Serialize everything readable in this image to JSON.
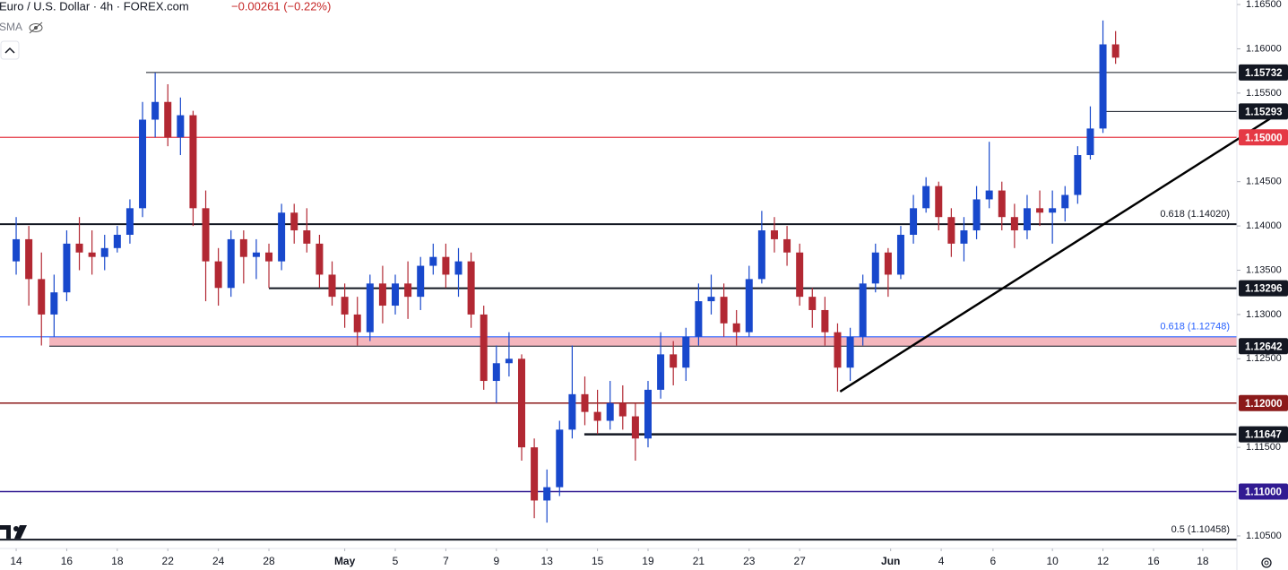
{
  "chart_data": {
    "type": "candlestick",
    "title": "Euro / U.S. Dollar · 4h · FOREX.com",
    "change": "−0.00261 (−0.22%)",
    "indicator": "SMA",
    "up_color": "#1848cc",
    "down_color": "#b22833",
    "xlim": [
      -0.64,
      48.3
    ],
    "ylim": [
      1.10358,
      1.16551
    ],
    "xticks": [
      {
        "value": 0,
        "label": "14"
      },
      {
        "value": 2,
        "label": "16"
      },
      {
        "value": 4,
        "label": "18"
      },
      {
        "value": 6,
        "label": "22"
      },
      {
        "value": 8,
        "label": "24"
      },
      {
        "value": 10,
        "label": "28"
      },
      {
        "value": 13,
        "label": "May"
      },
      {
        "value": 15,
        "label": "5"
      },
      {
        "value": 17,
        "label": "7"
      },
      {
        "value": 19,
        "label": "9"
      },
      {
        "value": 21,
        "label": "13"
      },
      {
        "value": 23,
        "label": "15"
      },
      {
        "value": 25,
        "label": "19"
      },
      {
        "value": 27,
        "label": "21"
      },
      {
        "value": 29,
        "label": "23"
      },
      {
        "value": 31,
        "label": "27"
      },
      {
        "value": 34.6,
        "label": "Jun"
      },
      {
        "value": 36.6,
        "label": "4"
      },
      {
        "value": 38.65,
        "label": "6"
      },
      {
        "value": 41,
        "label": "10"
      },
      {
        "value": 43,
        "label": "12"
      },
      {
        "value": 45,
        "label": "16"
      },
      {
        "value": 46.95,
        "label": "18"
      }
    ],
    "yticks": [
      {
        "value": 1.165,
        "label": "1.16500"
      },
      {
        "value": 1.16,
        "label": "1.16000"
      },
      {
        "value": 1.155,
        "label": "1.15500"
      },
      {
        "value": 1.145,
        "label": "1.14500"
      },
      {
        "value": 1.14,
        "label": "1.14000"
      },
      {
        "value": 1.135,
        "label": "1.13500"
      },
      {
        "value": 1.13,
        "label": "1.13000"
      },
      {
        "value": 1.125,
        "label": "1.12500"
      },
      {
        "value": 1.115,
        "label": "1.11500"
      },
      {
        "value": 1.105,
        "label": "1.10500"
      }
    ],
    "band": {
      "from": 1.31,
      "low": 1.12642,
      "high": 1.12748,
      "color": "#f4b6bd"
    },
    "levels": [
      {
        "value": 1.15732,
        "label": "1.15732",
        "color": "#131722",
        "from": 5.14
      },
      {
        "value": 1.15293,
        "label": "1.15293",
        "color": "#131722",
        "from": 42.98
      },
      {
        "value": 1.15,
        "label": "1.15000",
        "color": "#e53945"
      },
      {
        "value": 1.1402,
        "text": "0.618 (1.14020)",
        "color": "#131722"
      },
      {
        "value": 1.13296,
        "label": "1.13296",
        "color": "#131722",
        "from": 10.0
      },
      {
        "value": 1.12748,
        "text": "0.618 (1.12748)",
        "color": "#2962ff"
      },
      {
        "value": 1.12642,
        "label": "1.12642",
        "color": "#131722",
        "from": 1.31
      },
      {
        "value": 1.12,
        "label": "1.12000",
        "color": "#8b1a1a"
      },
      {
        "value": 1.11647,
        "label": "1.11647",
        "color": "#131722",
        "from": 22.48
      },
      {
        "value": 1.11,
        "label": "1.11000",
        "color": "#311b92"
      },
      {
        "value": 1.10458,
        "text": "0.5 (1.10458)",
        "color": "#131722"
      }
    ],
    "trendline": {
      "x": [
        32.6,
        50.3
      ],
      "y": [
        1.1213,
        1.15336
      ],
      "color": "#000000"
    },
    "candles": [
      {
        "x": 0,
        "o": 1.136,
        "h": 1.141,
        "l": 1.1345,
        "c": 1.1385
      },
      {
        "x": 0.5,
        "o": 1.1385,
        "h": 1.14,
        "l": 1.131,
        "c": 1.134
      },
      {
        "x": 1,
        "o": 1.134,
        "h": 1.137,
        "l": 1.1265,
        "c": 1.13
      },
      {
        "x": 1.5,
        "o": 1.13,
        "h": 1.1345,
        "l": 1.1275,
        "c": 1.1325
      },
      {
        "x": 2,
        "o": 1.1325,
        "h": 1.1395,
        "l": 1.1315,
        "c": 1.138
      },
      {
        "x": 2.5,
        "o": 1.138,
        "h": 1.141,
        "l": 1.135,
        "c": 1.137
      },
      {
        "x": 3,
        "o": 1.137,
        "h": 1.1395,
        "l": 1.1345,
        "c": 1.1365
      },
      {
        "x": 3.5,
        "o": 1.1365,
        "h": 1.139,
        "l": 1.135,
        "c": 1.1375
      },
      {
        "x": 4,
        "o": 1.1375,
        "h": 1.14,
        "l": 1.137,
        "c": 1.139
      },
      {
        "x": 4.5,
        "o": 1.139,
        "h": 1.143,
        "l": 1.138,
        "c": 1.142
      },
      {
        "x": 5,
        "o": 1.142,
        "h": 1.154,
        "l": 1.141,
        "c": 1.152
      },
      {
        "x": 5.5,
        "o": 1.152,
        "h": 1.1573,
        "l": 1.15,
        "c": 1.154
      },
      {
        "x": 6,
        "o": 1.154,
        "h": 1.156,
        "l": 1.149,
        "c": 1.15
      },
      {
        "x": 6.5,
        "o": 1.15,
        "h": 1.1545,
        "l": 1.148,
        "c": 1.1525
      },
      {
        "x": 7,
        "o": 1.1525,
        "h": 1.153,
        "l": 1.14,
        "c": 1.142
      },
      {
        "x": 7.5,
        "o": 1.142,
        "h": 1.144,
        "l": 1.1315,
        "c": 1.136
      },
      {
        "x": 8,
        "o": 1.136,
        "h": 1.1375,
        "l": 1.131,
        "c": 1.133
      },
      {
        "x": 8.5,
        "o": 1.133,
        "h": 1.1395,
        "l": 1.132,
        "c": 1.1385
      },
      {
        "x": 9,
        "o": 1.1385,
        "h": 1.1395,
        "l": 1.1335,
        "c": 1.1365
      },
      {
        "x": 9.5,
        "o": 1.1365,
        "h": 1.1385,
        "l": 1.134,
        "c": 1.137
      },
      {
        "x": 10,
        "o": 1.137,
        "h": 1.138,
        "l": 1.133,
        "c": 1.136
      },
      {
        "x": 10.5,
        "o": 1.136,
        "h": 1.1425,
        "l": 1.135,
        "c": 1.1415
      },
      {
        "x": 11,
        "o": 1.1415,
        "h": 1.1425,
        "l": 1.138,
        "c": 1.1395
      },
      {
        "x": 11.5,
        "o": 1.1395,
        "h": 1.142,
        "l": 1.137,
        "c": 1.138
      },
      {
        "x": 12,
        "o": 1.138,
        "h": 1.139,
        "l": 1.133,
        "c": 1.1345
      },
      {
        "x": 12.5,
        "o": 1.1345,
        "h": 1.136,
        "l": 1.131,
        "c": 1.132
      },
      {
        "x": 13,
        "o": 1.132,
        "h": 1.1335,
        "l": 1.1285,
        "c": 1.13
      },
      {
        "x": 13.5,
        "o": 1.13,
        "h": 1.132,
        "l": 1.1265,
        "c": 1.128
      },
      {
        "x": 14,
        "o": 1.128,
        "h": 1.1345,
        "l": 1.127,
        "c": 1.1335
      },
      {
        "x": 14.5,
        "o": 1.1335,
        "h": 1.1355,
        "l": 1.129,
        "c": 1.131
      },
      {
        "x": 15,
        "o": 1.131,
        "h": 1.1345,
        "l": 1.13,
        "c": 1.1335
      },
      {
        "x": 15.5,
        "o": 1.1335,
        "h": 1.136,
        "l": 1.1295,
        "c": 1.132
      },
      {
        "x": 16,
        "o": 1.132,
        "h": 1.1365,
        "l": 1.1305,
        "c": 1.1355
      },
      {
        "x": 16.5,
        "o": 1.1355,
        "h": 1.138,
        "l": 1.1345,
        "c": 1.1365
      },
      {
        "x": 17,
        "o": 1.1365,
        "h": 1.138,
        "l": 1.133,
        "c": 1.1345
      },
      {
        "x": 17.5,
        "o": 1.1345,
        "h": 1.1375,
        "l": 1.132,
        "c": 1.136
      },
      {
        "x": 18,
        "o": 1.136,
        "h": 1.137,
        "l": 1.1285,
        "c": 1.13
      },
      {
        "x": 18.5,
        "o": 1.13,
        "h": 1.131,
        "l": 1.1215,
        "c": 1.1225
      },
      {
        "x": 19,
        "o": 1.1225,
        "h": 1.1265,
        "l": 1.12,
        "c": 1.1245
      },
      {
        "x": 19.5,
        "o": 1.1245,
        "h": 1.128,
        "l": 1.123,
        "c": 1.125
      },
      {
        "x": 20,
        "o": 1.125,
        "h": 1.1255,
        "l": 1.1135,
        "c": 1.115
      },
      {
        "x": 20.5,
        "o": 1.115,
        "h": 1.116,
        "l": 1.107,
        "c": 1.109
      },
      {
        "x": 21,
        "o": 1.109,
        "h": 1.1125,
        "l": 1.1065,
        "c": 1.1105
      },
      {
        "x": 21.5,
        "o": 1.1105,
        "h": 1.118,
        "l": 1.1095,
        "c": 1.117
      },
      {
        "x": 22,
        "o": 1.117,
        "h": 1.1265,
        "l": 1.116,
        "c": 1.121
      },
      {
        "x": 22.5,
        "o": 1.121,
        "h": 1.123,
        "l": 1.1175,
        "c": 1.119
      },
      {
        "x": 23,
        "o": 1.119,
        "h": 1.1215,
        "l": 1.1165,
        "c": 1.118
      },
      {
        "x": 23.5,
        "o": 1.118,
        "h": 1.1225,
        "l": 1.117,
        "c": 1.12
      },
      {
        "x": 24,
        "o": 1.12,
        "h": 1.122,
        "l": 1.117,
        "c": 1.1185
      },
      {
        "x": 24.5,
        "o": 1.1185,
        "h": 1.12,
        "l": 1.1135,
        "c": 1.116
      },
      {
        "x": 25,
        "o": 1.116,
        "h": 1.1225,
        "l": 1.115,
        "c": 1.1215
      },
      {
        "x": 25.5,
        "o": 1.1215,
        "h": 1.128,
        "l": 1.1205,
        "c": 1.1255
      },
      {
        "x": 26,
        "o": 1.1255,
        "h": 1.127,
        "l": 1.122,
        "c": 1.124
      },
      {
        "x": 26.5,
        "o": 1.124,
        "h": 1.1285,
        "l": 1.1225,
        "c": 1.1275
      },
      {
        "x": 27,
        "o": 1.1275,
        "h": 1.1335,
        "l": 1.1265,
        "c": 1.1315
      },
      {
        "x": 27.5,
        "o": 1.1315,
        "h": 1.1345,
        "l": 1.13,
        "c": 1.132
      },
      {
        "x": 28,
        "o": 1.132,
        "h": 1.1335,
        "l": 1.1275,
        "c": 1.129
      },
      {
        "x": 28.5,
        "o": 1.129,
        "h": 1.1305,
        "l": 1.1265,
        "c": 1.128
      },
      {
        "x": 29,
        "o": 1.128,
        "h": 1.1355,
        "l": 1.1275,
        "c": 1.134
      },
      {
        "x": 29.5,
        "o": 1.134,
        "h": 1.1417,
        "l": 1.1335,
        "c": 1.1395
      },
      {
        "x": 30,
        "o": 1.1395,
        "h": 1.141,
        "l": 1.137,
        "c": 1.1385
      },
      {
        "x": 30.5,
        "o": 1.1385,
        "h": 1.14,
        "l": 1.1355,
        "c": 1.137
      },
      {
        "x": 31,
        "o": 1.137,
        "h": 1.138,
        "l": 1.131,
        "c": 1.132
      },
      {
        "x": 31.5,
        "o": 1.132,
        "h": 1.133,
        "l": 1.1285,
        "c": 1.1305
      },
      {
        "x": 32,
        "o": 1.1305,
        "h": 1.132,
        "l": 1.1265,
        "c": 1.128
      },
      {
        "x": 32.5,
        "o": 1.128,
        "h": 1.129,
        "l": 1.1213,
        "c": 1.124
      },
      {
        "x": 33,
        "o": 1.124,
        "h": 1.1285,
        "l": 1.1225,
        "c": 1.1275
      },
      {
        "x": 33.5,
        "o": 1.1275,
        "h": 1.1345,
        "l": 1.1265,
        "c": 1.1335
      },
      {
        "x": 34,
        "o": 1.1335,
        "h": 1.138,
        "l": 1.1325,
        "c": 1.137
      },
      {
        "x": 34.5,
        "o": 1.137,
        "h": 1.1375,
        "l": 1.132,
        "c": 1.1345
      },
      {
        "x": 35,
        "o": 1.1345,
        "h": 1.14,
        "l": 1.134,
        "c": 1.139
      },
      {
        "x": 35.5,
        "o": 1.139,
        "h": 1.1435,
        "l": 1.138,
        "c": 1.142
      },
      {
        "x": 36,
        "o": 1.142,
        "h": 1.1455,
        "l": 1.1415,
        "c": 1.1445
      },
      {
        "x": 36.5,
        "o": 1.1445,
        "h": 1.145,
        "l": 1.1395,
        "c": 1.141
      },
      {
        "x": 37,
        "o": 1.141,
        "h": 1.142,
        "l": 1.1365,
        "c": 1.138
      },
      {
        "x": 37.5,
        "o": 1.138,
        "h": 1.141,
        "l": 1.136,
        "c": 1.1395
      },
      {
        "x": 38,
        "o": 1.1395,
        "h": 1.1445,
        "l": 1.1385,
        "c": 1.143
      },
      {
        "x": 38.5,
        "o": 1.143,
        "h": 1.1495,
        "l": 1.142,
        "c": 1.144
      },
      {
        "x": 39,
        "o": 1.144,
        "h": 1.145,
        "l": 1.1395,
        "c": 1.141
      },
      {
        "x": 39.5,
        "o": 1.141,
        "h": 1.1425,
        "l": 1.1375,
        "c": 1.1395
      },
      {
        "x": 40,
        "o": 1.1395,
        "h": 1.1435,
        "l": 1.1385,
        "c": 1.142
      },
      {
        "x": 40.5,
        "o": 1.142,
        "h": 1.144,
        "l": 1.14,
        "c": 1.1415
      },
      {
        "x": 41,
        "o": 1.1415,
        "h": 1.144,
        "l": 1.138,
        "c": 1.142
      },
      {
        "x": 41.5,
        "o": 1.142,
        "h": 1.1445,
        "l": 1.1405,
        "c": 1.1435
      },
      {
        "x": 42,
        "o": 1.1435,
        "h": 1.149,
        "l": 1.1425,
        "c": 1.148
      },
      {
        "x": 42.5,
        "o": 1.148,
        "h": 1.1535,
        "l": 1.1475,
        "c": 1.151
      },
      {
        "x": 43,
        "o": 1.151,
        "h": 1.1632,
        "l": 1.1505,
        "c": 1.1605
      },
      {
        "x": 43.5,
        "o": 1.1605,
        "h": 1.162,
        "l": 1.1583,
        "c": 1.159
      }
    ]
  }
}
